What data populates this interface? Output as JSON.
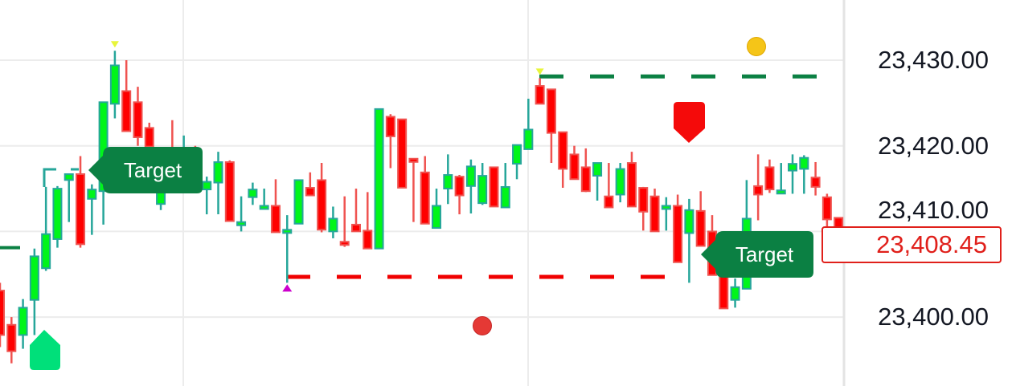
{
  "chart_data": {
    "type": "candlestick",
    "title": "",
    "xlabel": "",
    "ylabel": "",
    "ylim": [
      23392,
      23433
    ],
    "grid": true,
    "y_ticks": [
      {
        "value": 23430,
        "label": "23,430.00"
      },
      {
        "value": 23420,
        "label": "23,420.00"
      },
      {
        "value": 23410,
        "label": "23,410.00"
      },
      {
        "value": 23400,
        "label": "23,400.00"
      }
    ],
    "current_price": {
      "value": 23408.45,
      "label": "23,408.45",
      "color": "#e0201b"
    },
    "colors": {
      "up_fill": "#00f51a",
      "up_border": "#26a69a",
      "down_fill": "#ff0000",
      "down_border": "#ef5350"
    },
    "ohlc": [
      [
        23403.0,
        23404.0,
        23396.5,
        23398.0
      ],
      [
        23399.0,
        23400.0,
        23394.6,
        23396.1
      ],
      [
        23398.0,
        23402.1,
        23396.3,
        23401.0
      ],
      [
        23402.1,
        23408.0,
        23397.9,
        23407.0
      ],
      [
        23405.8,
        23415.2,
        23405.4,
        23409.6
      ],
      [
        23409.2,
        23415.3,
        23408.1,
        23414.9
      ],
      [
        23416.1,
        23416.6,
        23411.1,
        23416.6
      ],
      [
        23416.6,
        23418.8,
        23408.1,
        23408.6
      ],
      [
        23413.9,
        23415.5,
        23409.6,
        23414.8
      ],
      [
        23414.8,
        23425.0,
        23410.8,
        23425.0
      ],
      [
        23425.0,
        23431.1,
        23423.2,
        23429.3
      ],
      [
        23426.3,
        23430.0,
        23421.8,
        23421.8
      ],
      [
        23425.0,
        23426.9,
        23420.0,
        23421.1
      ],
      [
        23422.0,
        23422.7,
        23418.0,
        23420.0
      ],
      [
        23413.3,
        23419.0,
        23412.5,
        23418.0
      ],
      [
        23419.0,
        23423.0,
        23415.0,
        23416.0
      ],
      [
        23416.0,
        23421.2,
        23415.0,
        23418.5
      ],
      [
        23418.0,
        23420.0,
        23415.5,
        23417.0
      ],
      [
        23415.0,
        23416.4,
        23412.0,
        23415.7
      ],
      [
        23415.8,
        23419.3,
        23412.0,
        23418.0
      ],
      [
        23418.0,
        23418.3,
        23411.3,
        23411.3
      ],
      [
        23411.0,
        23414.1,
        23410.0,
        23411.0
      ],
      [
        23414.1,
        23415.7,
        23413.1,
        23414.8
      ],
      [
        23412.9,
        23415.0,
        23412.9,
        23412.9
      ],
      [
        23412.9,
        23416.1,
        23410.0,
        23410.0
      ],
      [
        23410.1,
        23411.9,
        23404.0,
        23410.1
      ],
      [
        23411.0,
        23415.9,
        23411.0,
        23415.9
      ],
      [
        23415.0,
        23416.9,
        23414.3,
        23414.3
      ],
      [
        23415.9,
        23418.0,
        23409.9,
        23410.3
      ],
      [
        23410.1,
        23412.9,
        23409.2,
        23411.4
      ],
      [
        23408.7,
        23414.1,
        23408.2,
        23408.6
      ],
      [
        23410.7,
        23415.0,
        23410.1,
        23410.1
      ],
      [
        23410.0,
        23414.6,
        23408.1,
        23408.1
      ],
      [
        23408.1,
        23424.2,
        23408.1,
        23424.2
      ],
      [
        23423.3,
        23423.7,
        23417.4,
        23421.2
      ],
      [
        23423.0,
        23423.0,
        23415.2,
        23415.2
      ],
      [
        23418.4,
        23418.5,
        23411.1,
        23418.3
      ],
      [
        23416.8,
        23418.8,
        23411.0,
        23411.0
      ],
      [
        23410.5,
        23415.0,
        23410.5,
        23412.9
      ],
      [
        23415.1,
        23419.0,
        23413.2,
        23416.5
      ],
      [
        23416.3,
        23416.6,
        23412.0,
        23414.3
      ],
      [
        23415.4,
        23418.4,
        23412.1,
        23417.5
      ],
      [
        23413.4,
        23418.0,
        23413.1,
        23416.4
      ],
      [
        23417.4,
        23417.4,
        23413.0,
        23413.0
      ],
      [
        23412.9,
        23418.0,
        23412.9,
        23415.1
      ],
      [
        23418.0,
        23420.0,
        23416.1,
        23420.0
      ],
      [
        23419.7,
        23425.5,
        23419.7,
        23421.8
      ],
      [
        23426.9,
        23427.9,
        23424.9,
        23425.0
      ],
      [
        23426.5,
        23426.5,
        23418.0,
        23421.6
      ],
      [
        23421.5,
        23421.5,
        23415.1,
        23417.4
      ],
      [
        23418.9,
        23420.0,
        23416.2,
        23416.2
      ],
      [
        23417.4,
        23419.7,
        23414.6,
        23414.8
      ],
      [
        23416.6,
        23417.9,
        23413.6,
        23417.9
      ],
      [
        23414.0,
        23418.0,
        23412.9,
        23412.9
      ],
      [
        23414.4,
        23418.0,
        23413.4,
        23417.2
      ],
      [
        23417.9,
        23419.3,
        23413.0,
        23413.0
      ],
      [
        23415.0,
        23415.2,
        23410.1,
        23412.4
      ],
      [
        23414.0,
        23415.0,
        23410.1,
        23410.1
      ],
      [
        23412.9,
        23414.0,
        23410.1,
        23412.9
      ],
      [
        23412.9,
        23414.3,
        23406.5,
        23406.5
      ],
      [
        23409.9,
        23413.8,
        23404.0,
        23412.4
      ],
      [
        23412.3,
        23414.7,
        23408.4,
        23408.4
      ],
      [
        23409.9,
        23411.9,
        23405.0,
        23405.0
      ],
      [
        23405.0,
        23405.2,
        23401.1,
        23401.1
      ],
      [
        23402.1,
        23404.5,
        23401.1,
        23403.4
      ],
      [
        23403.4,
        23416.0,
        23403.3,
        23411.4
      ],
      [
        23415.2,
        23419.0,
        23411.3,
        23414.4
      ],
      [
        23417.4,
        23418.4,
        23414.5,
        23415.0
      ],
      [
        23414.7,
        23418.0,
        23414.5,
        23414.7
      ],
      [
        23417.2,
        23419.0,
        23414.4,
        23417.8
      ],
      [
        23417.4,
        23418.9,
        23414.4,
        23418.5
      ],
      [
        23416.2,
        23418.1,
        23414.2,
        23415.3
      ],
      [
        23413.9,
        23414.4,
        23410.1,
        23411.5
      ],
      [
        23411.5,
        23411.5,
        23406.8,
        23408.45
      ]
    ],
    "levels": [
      {
        "kind": "target-high",
        "price": 23428.1,
        "style": "dashed",
        "color": "#0b8043"
      },
      {
        "kind": "target-low",
        "price": 23404.7,
        "style": "dashed",
        "color": "#f00000"
      },
      {
        "kind": "earlier-level",
        "price": 23408.1,
        "style": "solid",
        "color": "#0b8043"
      }
    ],
    "markers": [
      {
        "kind": "swing-high-triangle",
        "candle": 11,
        "color": "#e8f53a"
      },
      {
        "kind": "swing-high-triangle",
        "candle": 48,
        "color": "#e8f53a"
      },
      {
        "kind": "swing-low-triangle",
        "candle": 26,
        "color": "#cc00cc"
      },
      {
        "kind": "buy-signal",
        "color": "#00e07a"
      },
      {
        "kind": "sell-signal",
        "color": "#f50a0a"
      },
      {
        "kind": "gold-dot",
        "color": "#f5c518"
      },
      {
        "kind": "red-dot",
        "color": "#e53935"
      }
    ],
    "annotations": [
      {
        "text": "Target",
        "color": "#0b8043"
      },
      {
        "text": "Target",
        "color": "#0b8043"
      }
    ]
  }
}
